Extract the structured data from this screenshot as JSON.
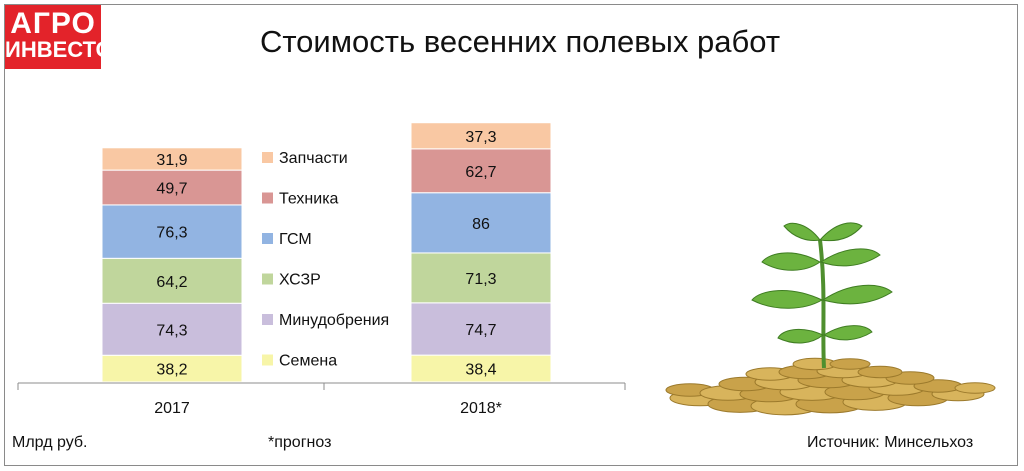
{
  "logo": {
    "line1": "АГРО",
    "line2": "ИНВЕСТОР"
  },
  "header": {
    "title": "Стоимость весенних полевых работ"
  },
  "footer": {
    "units": "Млрд руб.",
    "footnote": "*прогноз",
    "source": "Источник: Минсельхоз"
  },
  "colors": {
    "Семена": "#f7f5a8",
    "Минудобрения": "#c9bedc",
    "ХСЗР": "#c0d69c",
    "ГСМ": "#92b4e2",
    "Техника": "#d99694",
    "Запчасти": "#f9c8a3",
    "brand_red": "#e3232a"
  },
  "decoration": {
    "illustration": "plant-growing-from-coins"
  },
  "chart_data": {
    "type": "bar",
    "stacked": true,
    "title": "Стоимость весенних полевых работ",
    "categories": [
      "2017",
      "2018*"
    ],
    "series": [
      {
        "name": "Семена",
        "values": [
          38.2,
          38.4
        ],
        "labels": [
          "38,2",
          "38,4"
        ]
      },
      {
        "name": "Минудобрения",
        "values": [
          74.3,
          74.7
        ],
        "labels": [
          "74,3",
          "74,7"
        ]
      },
      {
        "name": "ХСЗР",
        "values": [
          64.2,
          71.3
        ],
        "labels": [
          "64,2",
          "71,3"
        ]
      },
      {
        "name": "ГСМ",
        "values": [
          76.3,
          86
        ],
        "labels": [
          "76,3",
          "86"
        ]
      },
      {
        "name": "Техника",
        "values": [
          49.7,
          62.7
        ],
        "labels": [
          "49,7",
          "62,7"
        ]
      },
      {
        "name": "Запчасти",
        "values": [
          31.9,
          37.3
        ],
        "labels": [
          "31,9",
          "37,3"
        ]
      }
    ],
    "legend_order": [
      "Запчасти",
      "Техника",
      "ГСМ",
      "ХСЗР",
      "Минудобрения",
      "Семена"
    ],
    "legend_position": "between bars",
    "ylim": [
      0,
      400
    ],
    "grid": false,
    "ylabel": "Млрд руб."
  }
}
